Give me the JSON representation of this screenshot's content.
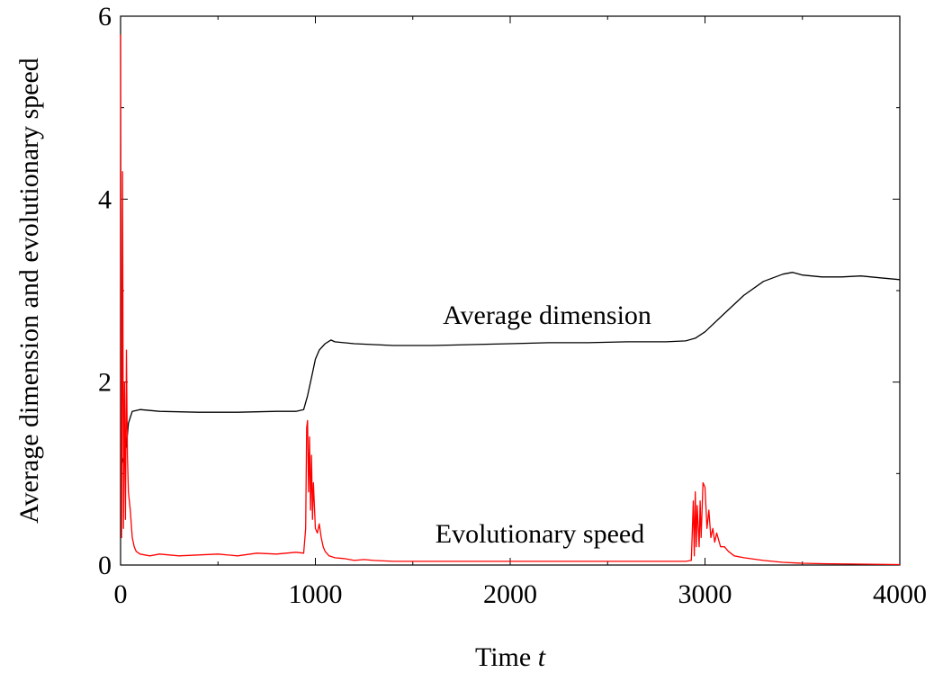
{
  "chart_data": {
    "type": "line",
    "title": "",
    "xlabel": "Time",
    "xlabel_var": "t",
    "ylabel": "Average dimension and evolutionary speed",
    "xlim": [
      0,
      4000
    ],
    "ylim": [
      0,
      6
    ],
    "xticks": [
      0,
      1000,
      2000,
      3000,
      4000
    ],
    "yticks": [
      0,
      2,
      4,
      6
    ],
    "x_tick_labels": [
      "0",
      "1000",
      "2000",
      "3000",
      "4000"
    ],
    "y_tick_labels": [
      "0",
      "2",
      "4",
      "6"
    ],
    "grid": false,
    "legend": "none",
    "annotations": [
      {
        "text": "Average dimension",
        "series": "Average dimension"
      },
      {
        "text": "Evolutionary speed",
        "series": "Evolutionary speed"
      }
    ],
    "series": [
      {
        "name": "Average dimension",
        "color": "#000000",
        "x": [
          0,
          10,
          20,
          30,
          40,
          60,
          100,
          200,
          400,
          600,
          800,
          900,
          940,
          960,
          980,
          1000,
          1020,
          1050,
          1080,
          1100,
          1200,
          1400,
          1600,
          1800,
          2000,
          2200,
          2400,
          2600,
          2800,
          2900,
          2950,
          3000,
          3100,
          3200,
          3300,
          3400,
          3450,
          3500,
          3600,
          3700,
          3800,
          3900,
          4000
        ],
        "y": [
          1.05,
          1.15,
          1.2,
          1.3,
          1.55,
          1.68,
          1.7,
          1.68,
          1.67,
          1.67,
          1.68,
          1.68,
          1.7,
          1.85,
          2.05,
          2.25,
          2.35,
          2.42,
          2.46,
          2.44,
          2.42,
          2.4,
          2.4,
          2.41,
          2.42,
          2.43,
          2.43,
          2.44,
          2.44,
          2.45,
          2.48,
          2.55,
          2.75,
          2.95,
          3.1,
          3.18,
          3.2,
          3.17,
          3.15,
          3.15,
          3.16,
          3.14,
          3.12
        ]
      },
      {
        "name": "Evolutionary speed",
        "color": "#ff0000",
        "x": [
          0,
          5,
          10,
          15,
          20,
          25,
          30,
          35,
          40,
          50,
          60,
          70,
          80,
          100,
          150,
          200,
          300,
          400,
          500,
          600,
          700,
          800,
          900,
          940,
          950,
          955,
          960,
          965,
          970,
          975,
          980,
          985,
          990,
          1000,
          1010,
          1020,
          1030,
          1040,
          1050,
          1070,
          1100,
          1150,
          1200,
          1250,
          1300,
          1400,
          1500,
          1600,
          1800,
          2000,
          2200,
          2400,
          2600,
          2800,
          2900,
          2930,
          2940,
          2945,
          2950,
          2955,
          2960,
          2970,
          2975,
          2980,
          2990,
          3000,
          3010,
          3020,
          3030,
          3040,
          3050,
          3060,
          3080,
          3100,
          3120,
          3150,
          3200,
          3300,
          3400,
          3500,
          3600,
          3800,
          4000
        ],
        "y": [
          5.8,
          0.3,
          4.3,
          0.4,
          2.0,
          0.5,
          2.35,
          1.2,
          0.8,
          0.6,
          0.3,
          0.2,
          0.15,
          0.12,
          0.1,
          0.12,
          0.1,
          0.11,
          0.12,
          0.1,
          0.13,
          0.12,
          0.14,
          0.13,
          0.4,
          1.5,
          1.58,
          0.8,
          1.4,
          0.6,
          1.2,
          0.5,
          0.9,
          0.4,
          0.35,
          0.45,
          0.3,
          0.2,
          0.15,
          0.1,
          0.08,
          0.07,
          0.05,
          0.06,
          0.05,
          0.04,
          0.04,
          0.04,
          0.04,
          0.04,
          0.04,
          0.04,
          0.04,
          0.04,
          0.04,
          0.05,
          0.7,
          0.1,
          0.8,
          0.2,
          0.65,
          0.2,
          0.7,
          0.3,
          0.9,
          0.85,
          0.4,
          0.6,
          0.3,
          0.4,
          0.25,
          0.35,
          0.2,
          0.2,
          0.15,
          0.1,
          0.08,
          0.05,
          0.03,
          0.02,
          0.015,
          0.01,
          0.005
        ]
      }
    ]
  }
}
